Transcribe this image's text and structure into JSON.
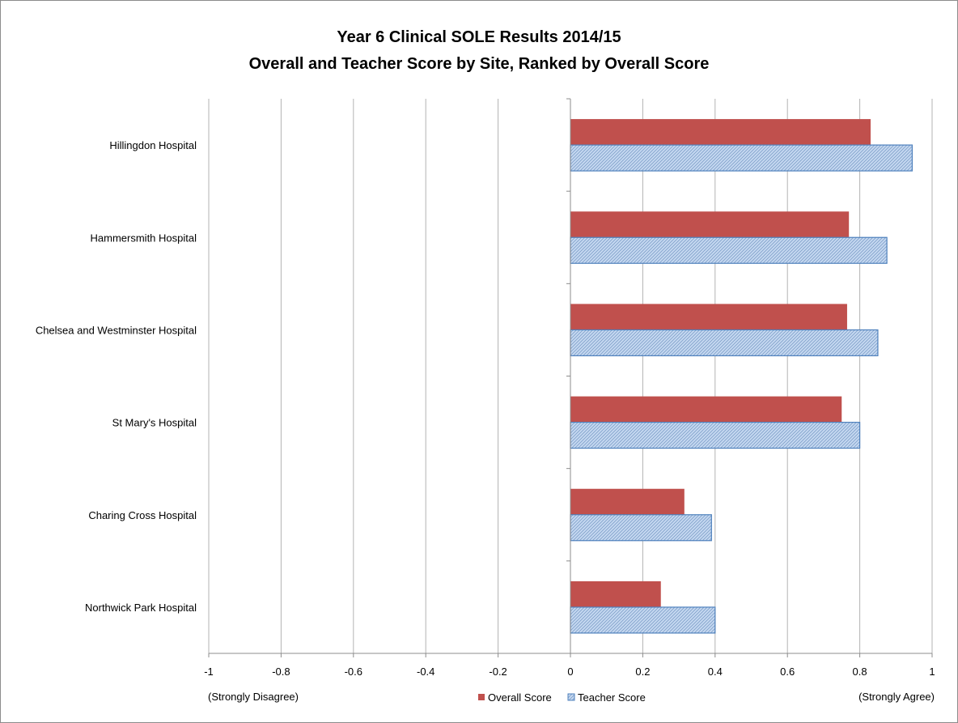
{
  "chart_data": {
    "type": "bar",
    "orientation": "horizontal",
    "title": "Year 6 Clinical SOLE Results  2014/15",
    "subtitle": "Overall and Teacher Score by Site, Ranked by Overall Score",
    "categories": [
      "Hillingdon Hospital",
      "Hammersmith Hospital",
      "Chelsea and Westminster Hospital",
      "St Mary's Hospital",
      "Charing Cross Hospital",
      "Northwick Park Hospital"
    ],
    "series": [
      {
        "name": "Overall Score",
        "color": "#c0504d",
        "values": [
          0.83,
          0.77,
          0.765,
          0.75,
          0.315,
          0.25
        ]
      },
      {
        "name": "Teacher Score",
        "color": "#b8cce4",
        "values": [
          0.945,
          0.875,
          0.85,
          0.8,
          0.39,
          0.4
        ]
      }
    ],
    "xlim": [
      -1,
      1
    ],
    "xticks": [
      "-1",
      "-0.8",
      "-0.6",
      "-0.4",
      "-0.2",
      "0",
      "0.2",
      "0.4",
      "0.6",
      "0.8",
      "1"
    ],
    "xtick_values": [
      -1,
      -0.8,
      -0.6,
      -0.4,
      -0.2,
      0,
      0.2,
      0.4,
      0.6,
      0.8,
      1
    ],
    "axis_left_note": "(Strongly Disagree)",
    "axis_right_note": "(Strongly Agree)",
    "grid": true,
    "legend_position": "bottom"
  }
}
